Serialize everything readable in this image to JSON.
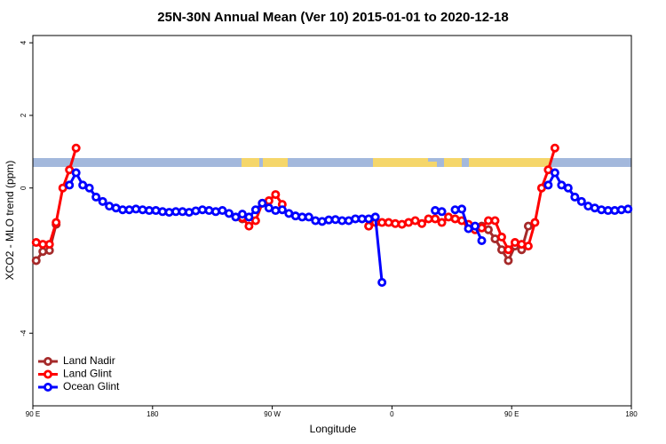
{
  "chart_data": {
    "type": "line",
    "title": "25N-30N Annual Mean (Ver 10)   2015-01-01 to 2020-12-18",
    "xlabel": "Longitude",
    "ylabel": "XCO2 - MLO trend (ppm)",
    "xlim": [
      90,
      540
    ],
    "xticks": [
      {
        "value": 90,
        "label": "90 E"
      },
      180,
      {
        "value": 270,
        "label": "90 W"
      },
      {
        "value": 360,
        "label": "0"
      },
      {
        "value": 450,
        "label": "90 E"
      },
      {
        "value": 540,
        "label": "180"
      }
    ],
    "ylim": [
      -6,
      4.2
    ],
    "yticks": [
      -4,
      0,
      2,
      4
    ],
    "legend": "bottom-left",
    "series": [
      {
        "name": "Land Nadir",
        "color": "#a52a2a",
        "x": [
          92.5,
          97.5,
          102.5,
          107.5,
          112.5,
          247.5,
          252.5,
          342.5,
          347.5,
          422.5,
          427.5,
          432.5,
          437.5,
          442.5,
          447.5,
          452.5,
          457.5,
          462.5
        ],
        "values": [
          -2.0,
          -1.75,
          -1.72,
          -1.0,
          null,
          -0.85,
          null,
          -1.05,
          null,
          -1.1,
          -1.05,
          -1.15,
          -1.4,
          -1.7,
          -2.0,
          -1.6,
          -1.7,
          -1.05
        ]
      },
      {
        "name": "Land Glint",
        "color": "#ff0000",
        "x": [
          92.5,
          97.5,
          102.5,
          107.5,
          112.5,
          117.5,
          122.5,
          127.5,
          247.5,
          252.5,
          257.5,
          262.5,
          267.5,
          272.5,
          277.5,
          282.5,
          342.5,
          347.5,
          352.5,
          357.5,
          362.5,
          367.5,
          372.5,
          377.5,
          382.5,
          387.5,
          392.5,
          397.5,
          402.5,
          407.5,
          412.5,
          417.5,
          422.5,
          427.5,
          432.5,
          437.5,
          442.5,
          447.5,
          452.5,
          457.5,
          462.5,
          467.5,
          472.5,
          477.5,
          482.5
        ],
        "values": [
          -1.5,
          -1.55,
          -1.55,
          -0.95,
          0.0,
          0.5,
          1.1,
          null,
          -0.82,
          -1.05,
          -0.9,
          -0.42,
          -0.35,
          -0.18,
          -0.45,
          null,
          -1.05,
          -0.95,
          -0.95,
          -0.95,
          -0.98,
          -1.0,
          -0.95,
          -0.9,
          -0.98,
          -0.85,
          -0.85,
          -0.95,
          -0.8,
          -0.85,
          -0.9,
          -1.0,
          -1.15,
          -1.1,
          -0.9,
          -0.9,
          -1.35,
          -1.7,
          -1.5,
          -1.55,
          -1.6,
          -0.95,
          0.0,
          0.5,
          1.1
        ]
      },
      {
        "name": "Ocean Glint",
        "color": "#0000ff",
        "x": [
          117.5,
          122.5,
          127.5,
          132.5,
          137.5,
          142.5,
          147.5,
          152.5,
          157.5,
          162.5,
          167.5,
          172.5,
          177.5,
          182.5,
          187.5,
          192.5,
          197.5,
          202.5,
          207.5,
          212.5,
          217.5,
          222.5,
          227.5,
          232.5,
          237.5,
          242.5,
          247.5,
          252.5,
          257.5,
          262.5,
          267.5,
          272.5,
          277.5,
          282.5,
          287.5,
          292.5,
          297.5,
          302.5,
          307.5,
          312.5,
          317.5,
          322.5,
          327.5,
          332.5,
          337.5,
          342.5,
          347.5,
          352.5,
          357.5,
          392.5,
          397.5,
          402.5,
          407.5,
          412.5,
          417.5,
          422.5,
          427.5,
          432.5,
          477.5,
          482.5,
          487.5,
          492.5,
          497.5,
          502.5,
          507.5,
          512.5,
          517.5,
          522.5,
          527.5,
          532.5,
          537.5
        ],
        "values": [
          0.08,
          0.42,
          0.08,
          0.0,
          -0.25,
          -0.37,
          -0.5,
          -0.55,
          -0.6,
          -0.6,
          -0.58,
          -0.6,
          -0.62,
          -0.62,
          -0.65,
          -0.67,
          -0.65,
          -0.65,
          -0.67,
          -0.63,
          -0.6,
          -0.62,
          -0.65,
          -0.62,
          -0.7,
          -0.8,
          -0.72,
          -0.8,
          -0.6,
          -0.42,
          -0.55,
          -0.62,
          -0.6,
          -0.7,
          -0.77,
          -0.8,
          -0.8,
          -0.9,
          -0.92,
          -0.88,
          -0.87,
          -0.9,
          -0.9,
          -0.85,
          -0.85,
          -0.85,
          -0.8,
          -2.6,
          null,
          -0.62,
          -0.65,
          null,
          -0.6,
          -0.58,
          -1.12,
          -1.05,
          -1.45,
          null,
          0.08,
          0.42,
          0.08,
          0.0,
          -0.25,
          -0.37,
          -0.5,
          -0.55,
          -0.6,
          -0.62,
          -0.62,
          -0.6,
          -0.58
        ]
      }
    ]
  }
}
